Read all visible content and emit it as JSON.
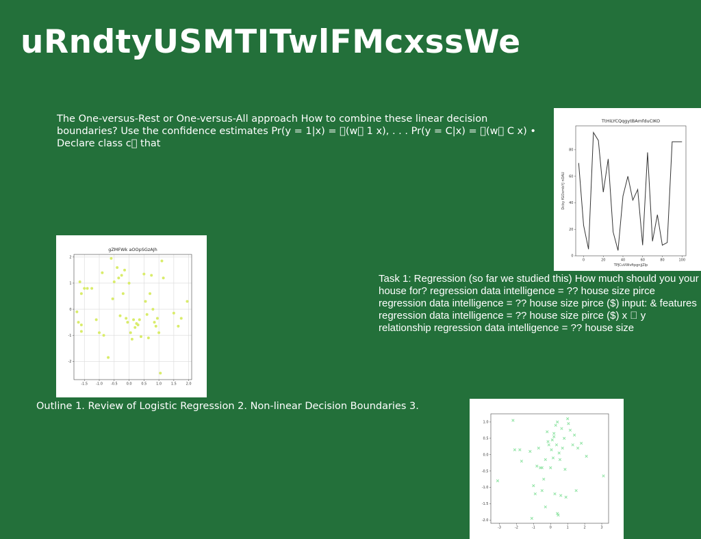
{
  "slide": {
    "title": "uRndtyUSMTITwlFMcxssWe",
    "para1": "The One-versus-Rest or One-versus-All approach How to combine these linear decision boundaries? Use the confidence estimates Pr(y = 1|x) = \u0000(w\u0000 1 x), . . . Pr(y = C|x) = \u0000(w\u0000 C x) • Declare class c\u0000 that",
    "para2": "Task 1: Regression (so far we studied this) How much should you your house for? regression data intelligence = ?? house size pirce regression data intelligence = ?? house size pirce ($) input: & features regression data intelligence = ?? house size pirce ($) x \u0000 y relationship regression data intelligence = ?? house size",
    "para3": "Outline 1. Review of Logistic Regression 2. Non-linear Decision Boundaries 3."
  },
  "chart_data": [
    {
      "type": "line",
      "title": "TtHiLYCQqgytBAmfduCIKO",
      "xlabel": "TPJCuVWvftpgnjjZlp",
      "ylabel": "Dcby fGOxmbYJ nOAU",
      "xlim": [
        -8,
        104
      ],
      "ylim": [
        0,
        98
      ],
      "xticks": [
        0,
        20,
        40,
        60,
        80,
        100
      ],
      "yticks": [
        0,
        20,
        40,
        60,
        80
      ],
      "grid": false,
      "color": "#333333",
      "x": [
        -5,
        0,
        5,
        10,
        15,
        20,
        25,
        30,
        35,
        40,
        45,
        50,
        55,
        60,
        65,
        70,
        75,
        80,
        85,
        90,
        95,
        100
      ],
      "y": [
        70,
        23,
        5,
        93,
        87,
        48,
        73,
        18,
        4,
        45,
        60,
        42,
        50,
        8,
        78,
        11,
        31,
        8,
        10,
        86,
        86,
        86
      ]
    },
    {
      "type": "scatter",
      "title": "gZMFWk aOOpSGzAJh",
      "xlim": [
        -1.85,
        2.1
      ],
      "ylim": [
        -2.7,
        2.1
      ],
      "xticks": [
        -1.5,
        -1.0,
        -0.5,
        0.0,
        0.5,
        1.0,
        1.5,
        2.0
      ],
      "xtick_labels": [
        "-1.5",
        "-1.0",
        "-0.5",
        "0.0",
        "0.5",
        "1.0",
        "1.5",
        "2.0"
      ],
      "yticks": [
        -2,
        -1,
        0,
        1,
        2
      ],
      "grid": true,
      "marker": "o",
      "color": "#d9ec6a",
      "points": [
        [
          -1.75,
          -0.1
        ],
        [
          -1.7,
          -0.5
        ],
        [
          -1.65,
          1.05
        ],
        [
          -1.6,
          0.6
        ],
        [
          -1.6,
          -0.6
        ],
        [
          -1.6,
          -0.85
        ],
        [
          -1.5,
          0.8
        ],
        [
          -1.4,
          0.8
        ],
        [
          -1.25,
          0.8
        ],
        [
          -1.1,
          -0.4
        ],
        [
          -1.0,
          -0.9
        ],
        [
          -0.9,
          1.4
        ],
        [
          -0.85,
          -1.0
        ],
        [
          -0.7,
          -1.85
        ],
        [
          -0.6,
          1.95
        ],
        [
          -0.55,
          0.4
        ],
        [
          -0.5,
          1.05
        ],
        [
          -0.4,
          1.6
        ],
        [
          -0.35,
          1.2
        ],
        [
          -0.3,
          -0.25
        ],
        [
          -0.25,
          1.3
        ],
        [
          -0.2,
          0.6
        ],
        [
          -0.15,
          1.5
        ],
        [
          -0.1,
          -0.35
        ],
        [
          -0.05,
          -0.5
        ],
        [
          0.0,
          1.0
        ],
        [
          0.05,
          -0.9
        ],
        [
          0.1,
          -1.15
        ],
        [
          0.15,
          -0.4
        ],
        [
          0.2,
          -0.7
        ],
        [
          0.25,
          -0.55
        ],
        [
          0.3,
          -0.6
        ],
        [
          0.35,
          -0.4
        ],
        [
          0.4,
          -1.05
        ],
        [
          0.5,
          1.35
        ],
        [
          0.55,
          0.3
        ],
        [
          0.6,
          -0.2
        ],
        [
          0.65,
          -1.1
        ],
        [
          0.7,
          0.6
        ],
        [
          0.75,
          1.3
        ],
        [
          0.8,
          0.0
        ],
        [
          0.85,
          -0.5
        ],
        [
          0.9,
          -0.65
        ],
        [
          0.95,
          -0.35
        ],
        [
          1.0,
          -0.9
        ],
        [
          1.05,
          -2.45
        ],
        [
          1.1,
          1.85
        ],
        [
          1.15,
          1.2
        ],
        [
          1.5,
          -0.15
        ],
        [
          1.65,
          -0.65
        ],
        [
          1.75,
          -0.35
        ],
        [
          1.95,
          0.3
        ]
      ]
    },
    {
      "type": "scatter",
      "xlim": [
        -3.5,
        3.4
      ],
      "ylim": [
        -2.1,
        1.25
      ],
      "xticks": [
        -3,
        -2,
        -1,
        0,
        1,
        2,
        3
      ],
      "xtick_labels": [
        "-3",
        "-2",
        "-1",
        "0",
        "1",
        "2",
        "3"
      ],
      "yticks": [
        -2.0,
        -1.5,
        -1.0,
        -0.5,
        0.0,
        0.5,
        1.0
      ],
      "ytick_labels": [
        "-2.0",
        "-1.5",
        "-1.0",
        "-0.5",
        "0.0",
        "0.5",
        "1.0"
      ],
      "grid": false,
      "marker": "x",
      "color": "#8fe3a3",
      "points": [
        [
          -3.1,
          -0.8
        ],
        [
          -2.2,
          1.05
        ],
        [
          -2.1,
          0.15
        ],
        [
          -1.8,
          0.15
        ],
        [
          -1.7,
          -0.2
        ],
        [
          -1.2,
          0.1
        ],
        [
          -1.1,
          -1.95
        ],
        [
          -1.0,
          -0.95
        ],
        [
          -0.9,
          -1.2
        ],
        [
          -0.8,
          -0.35
        ],
        [
          -0.7,
          0.2
        ],
        [
          -0.6,
          -0.4
        ],
        [
          -0.5,
          -0.4
        ],
        [
          -0.4,
          -0.75
        ],
        [
          -0.3,
          -0.15
        ],
        [
          -0.2,
          0.7
        ],
        [
          -0.15,
          0.4
        ],
        [
          -0.1,
          0.3
        ],
        [
          0.0,
          -0.4
        ],
        [
          0.05,
          0.15
        ],
        [
          0.1,
          0.45
        ],
        [
          0.15,
          -0.1
        ],
        [
          0.2,
          0.55
        ],
        [
          0.25,
          -1.2
        ],
        [
          0.3,
          0.9
        ],
        [
          0.35,
          0.3
        ],
        [
          0.4,
          1.0
        ],
        [
          0.4,
          -1.8
        ],
        [
          0.45,
          -1.85
        ],
        [
          0.5,
          0.05
        ],
        [
          0.55,
          -0.15
        ],
        [
          0.6,
          -1.25
        ],
        [
          0.65,
          0.8
        ],
        [
          0.7,
          0.2
        ],
        [
          0.8,
          0.5
        ],
        [
          0.85,
          -0.45
        ],
        [
          0.9,
          -1.3
        ],
        [
          1.0,
          1.1
        ],
        [
          1.05,
          0.95
        ],
        [
          1.15,
          0.75
        ],
        [
          1.3,
          0.3
        ],
        [
          1.4,
          0.6
        ],
        [
          1.5,
          -1.1
        ],
        [
          1.6,
          0.2
        ],
        [
          1.8,
          0.35
        ],
        [
          2.1,
          -0.05
        ],
        [
          3.1,
          -0.65
        ],
        [
          -0.5,
          -1.1
        ],
        [
          -0.3,
          -1.6
        ],
        [
          0.2,
          0.65
        ]
      ]
    }
  ]
}
